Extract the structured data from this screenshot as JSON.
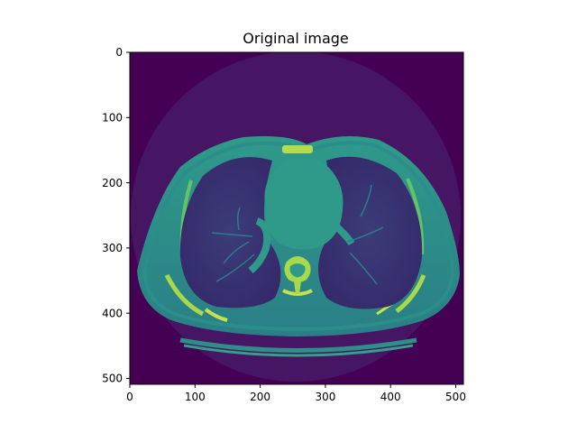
{
  "title": "Original image",
  "x_ticks": [
    "0",
    "100",
    "200",
    "300",
    "400",
    "500"
  ],
  "y_ticks": [
    "0",
    "100",
    "200",
    "300",
    "400",
    "500"
  ],
  "image": {
    "description_colormap": "viridis",
    "size": [
      512,
      512
    ]
  },
  "colors": {
    "background": "#440154",
    "body_tissue": "#2a8a86",
    "lung": "#3a2f6b",
    "bone": "#a8d94a"
  }
}
